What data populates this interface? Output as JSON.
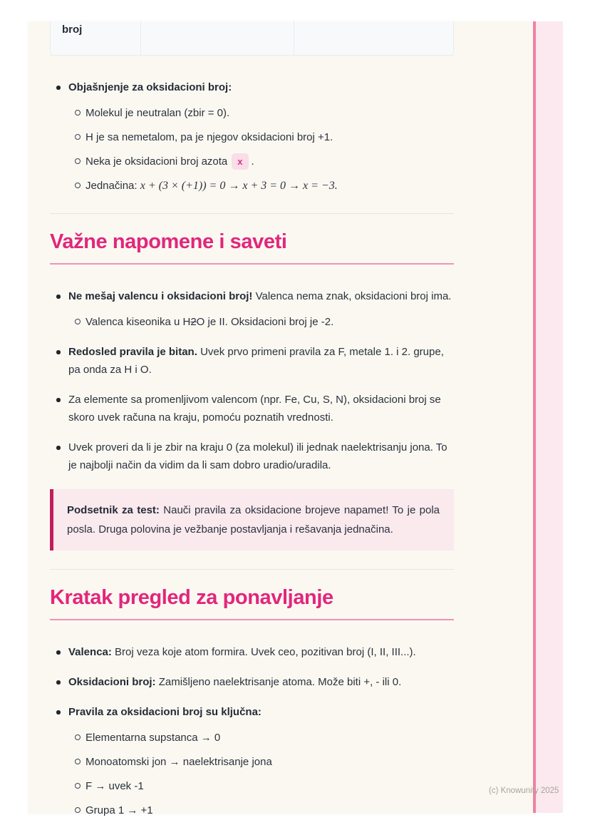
{
  "accent_colors": {
    "heading_pink": "#e2267c",
    "callout_border": "#bf1d5e",
    "callout_bg": "#fae9ed",
    "stripe": "#ee82a5"
  },
  "table_fragment": {
    "cells": [
      "broj",
      "",
      ""
    ]
  },
  "explain": {
    "title": "Objašnjenje za oksidacioni broj:",
    "item1": "Molekul je neutralan (zbir = 0).",
    "item2": "H je sa nemetalom, pa je njegov oksidacioni broj +1.",
    "item3_pre": "Neka je oksidacioni broj azota",
    "item3_badge": "x",
    "item3_post": ".",
    "item4_label": "Jednačina: ",
    "item4_math": "x + (3 × (+1)) = 0 → x + 3 = 0 → x = −3."
  },
  "notes": {
    "heading": "Važne napomene i saveti",
    "item1_bold": "Ne mešaj valencu i oksidacioni broj!",
    "item1_rest": "Valenca nema znak, oksidacioni broj ima.",
    "item1_sub_pre": "Valenca kiseonika u H",
    "item1_sub_strike": "2",
    "item1_sub_post": "O je II. Oksidacioni broj je -2.",
    "item2_bold": "Redosled pravila je bitan.",
    "item2_rest": "Uvek prvo primeni pravila za F, metale 1. i 2. grupe, pa onda za H i O.",
    "item3": "Za elemente sa promenljivom valencom (npr. Fe, Cu, S, N), oksidacioni broj se skoro uvek računa na kraju, pomoću poznatih vrednosti.",
    "item4": "Uvek proveri da li je zbir na kraju 0 (za molekul) ili jednak naelektrisanju jona. To je najbolji način da vidim da li sam dobro uradio/uradila.",
    "callout_title": "Podsetnik za test:",
    "callout_body": "Nauči pravila za oksidacione brojeve napamet! To je pola posla. Druga polovina je vežbanje postavljanja i rešavanja jednačina."
  },
  "review": {
    "heading": "Kratak pregled za ponavljanje",
    "item1_bold": "Valenca:",
    "item1_rest": "Broj veza koje atom formira. Uvek ceo, pozitivan broj (I, II, III...).",
    "item2_bold": "Oksidacioni broj:",
    "item2_rest": "Zamišljeno naelektrisanje atoma. Može biti +, - ili 0.",
    "item3_bold": "Pravila za oksidacioni broj su ključna:",
    "item3_sub": [
      "Elementarna supstanca → 0",
      "Monoatomski jon → naelektrisanje jona",
      "F → uvek -1",
      "Grupa 1 → +1"
    ]
  },
  "footer": {
    "copyright": "(c) Knowunity 2025"
  }
}
